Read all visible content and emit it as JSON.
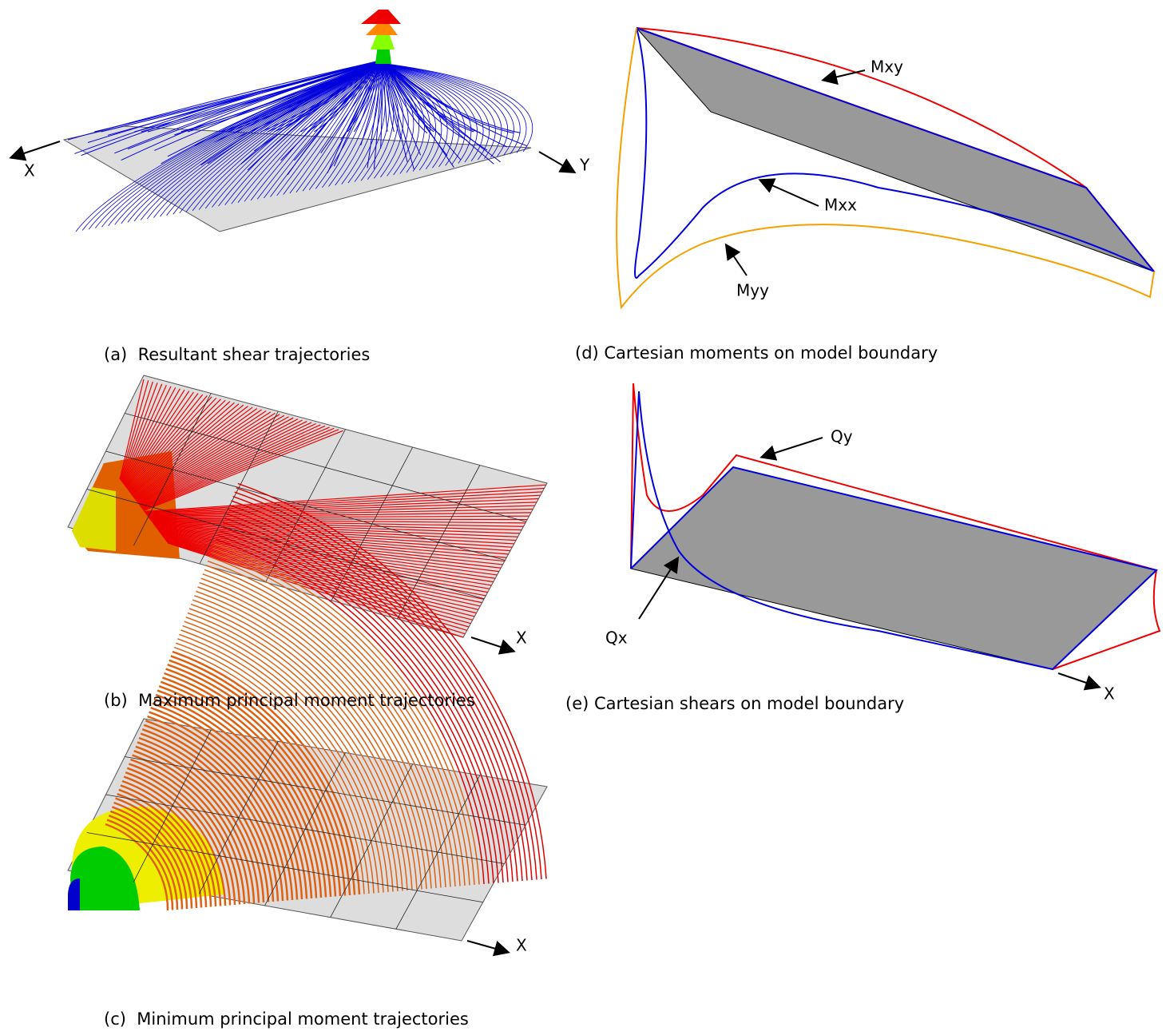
{
  "panels": [
    {
      "caption": "(a)  Resultant shear trajectories",
      "axis_labels": [
        "X",
        "Y"
      ]
    },
    {
      "caption": "(b)  Maximum principal moment trajectories",
      "axis_labels": [
        "X"
      ]
    },
    {
      "caption": "(c)  Minimum principal moment trajectories",
      "axis_labels": [
        "X"
      ]
    },
    {
      "caption": "(d) Cartesian moments on model boundary",
      "annotations": [
        "Mxy",
        "Mxx",
        "Myy"
      ]
    },
    {
      "caption": "(e) Cartesian shears on model boundary",
      "annotations": [
        "Qy",
        "Qx"
      ],
      "axis_labels": [
        "X"
      ]
    }
  ]
}
